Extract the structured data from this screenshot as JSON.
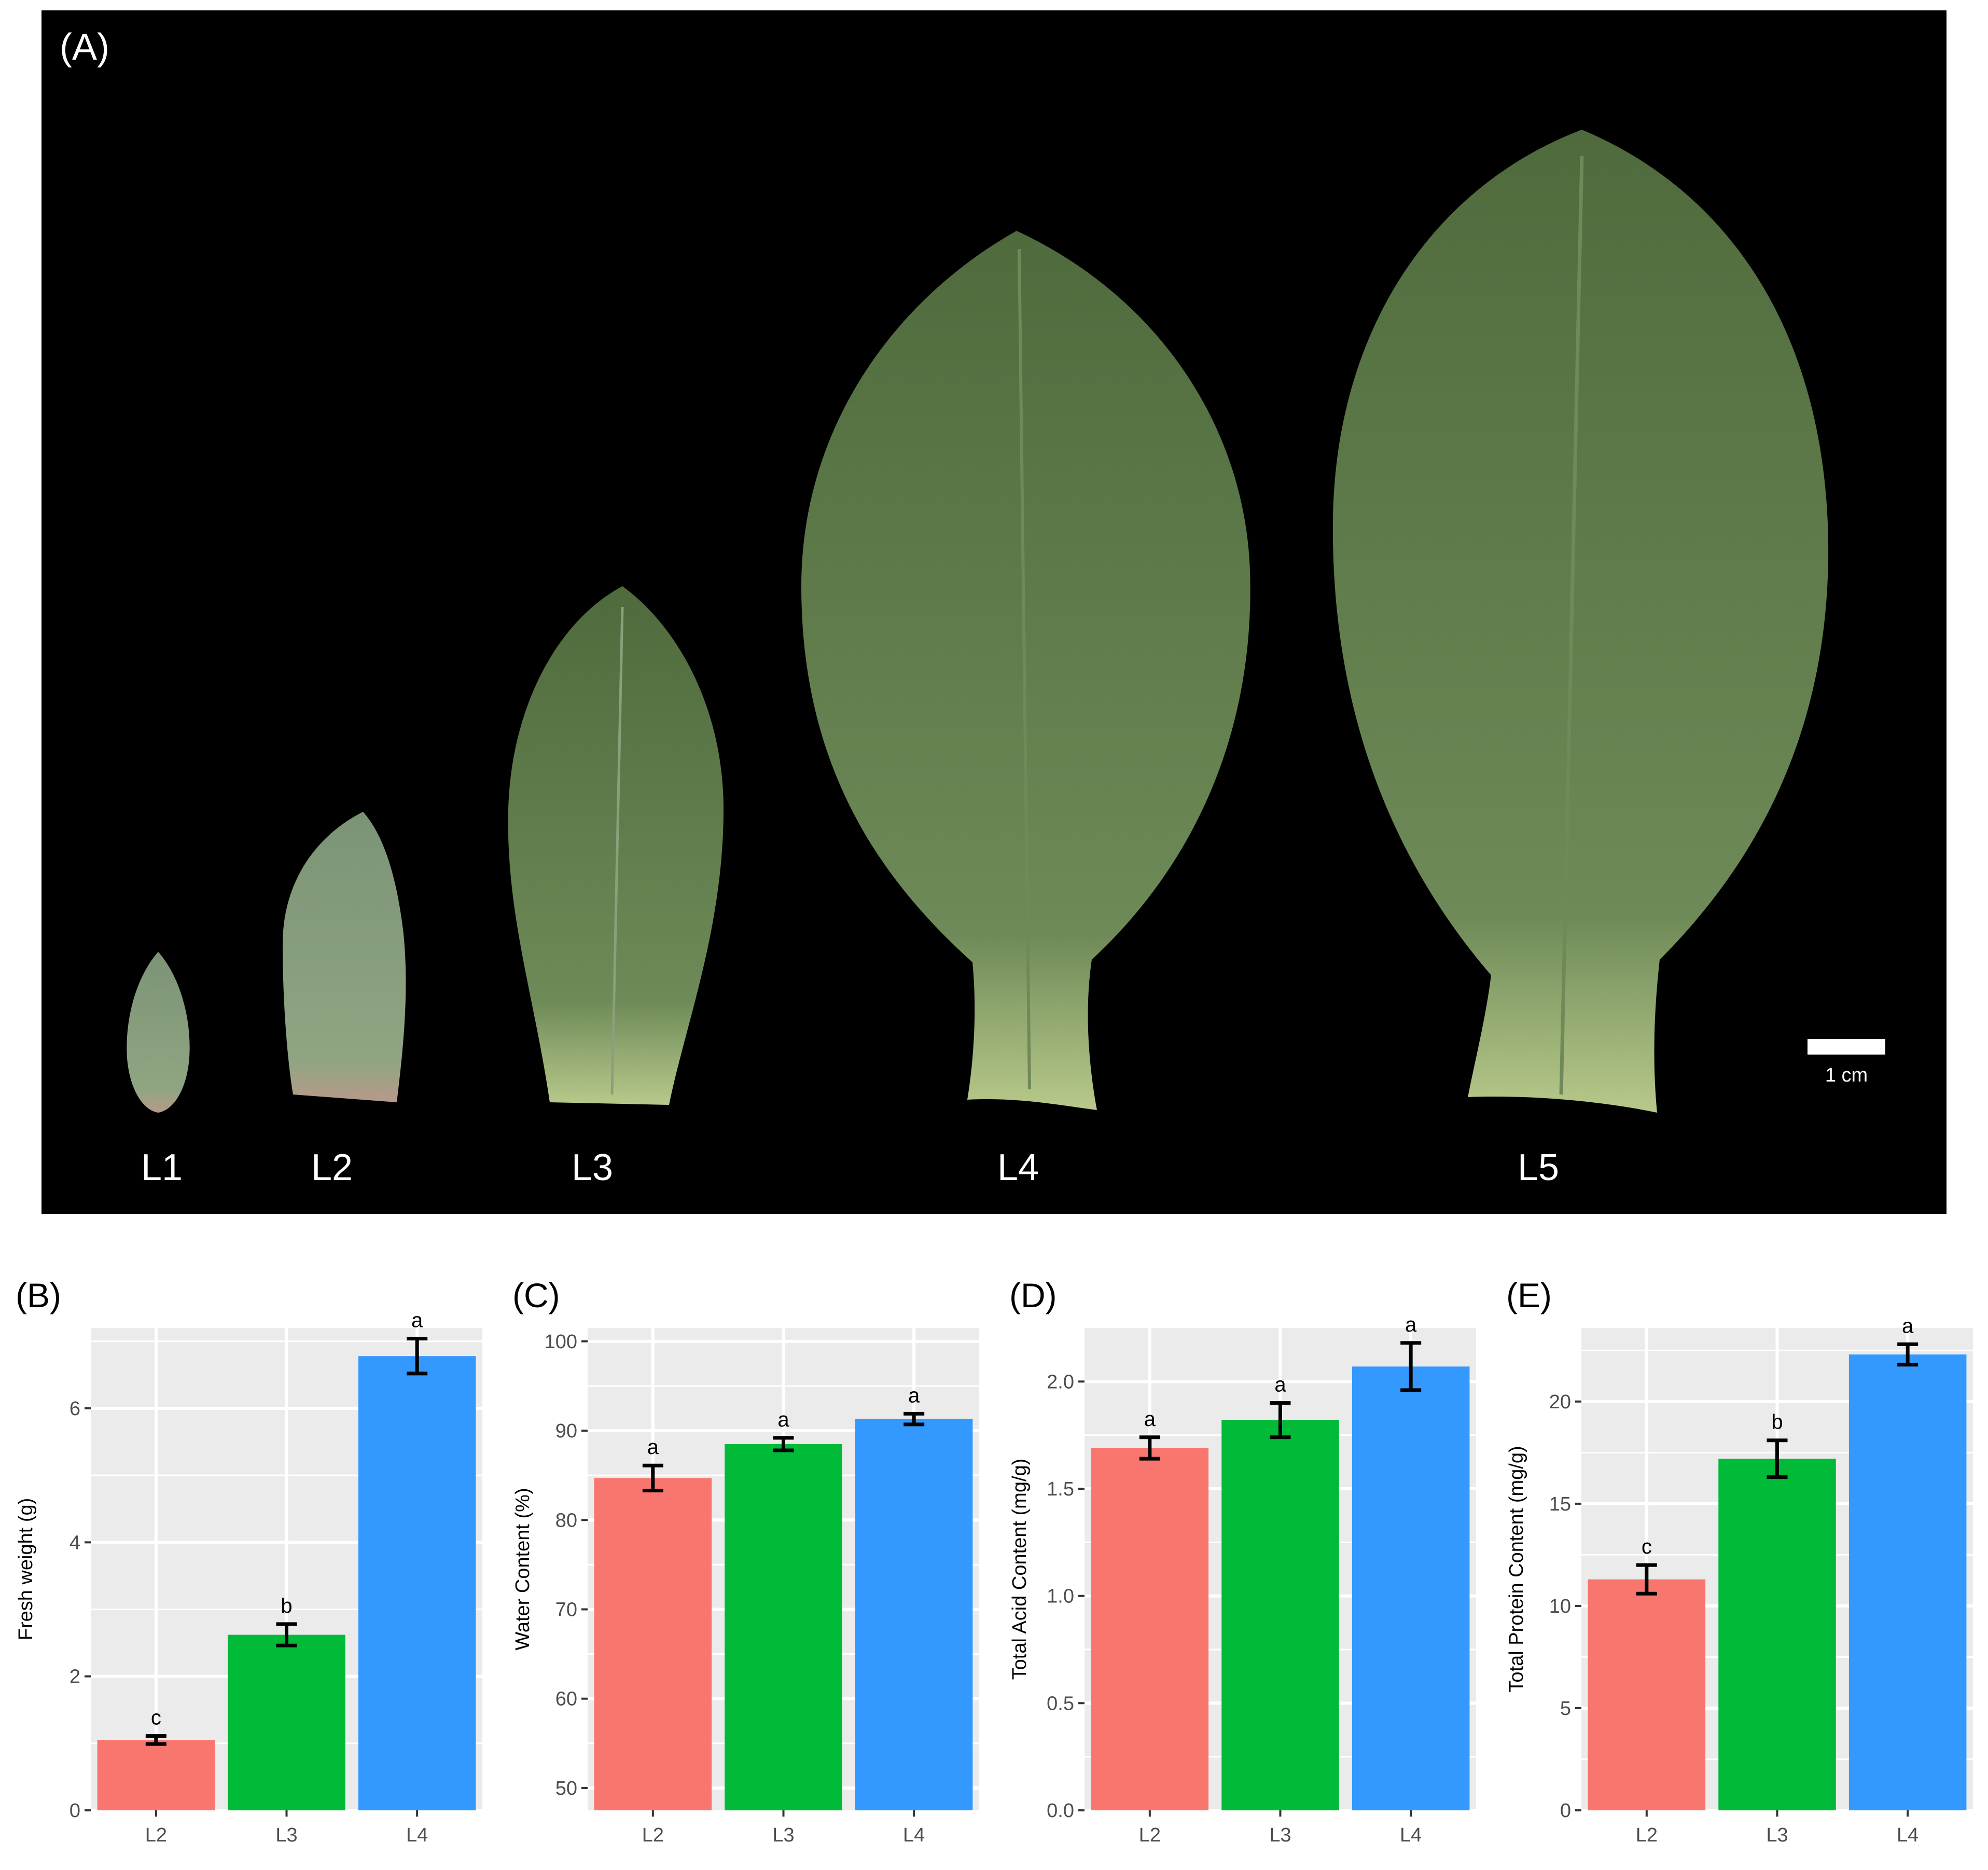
{
  "panel_a": {
    "label": "(A)",
    "scale_bar_label": "1 cm",
    "leaf_labels": [
      "L1",
      "L2",
      "L3",
      "L4",
      "L5"
    ]
  },
  "colors": {
    "background_photo": "#000000",
    "panel_bg": "#EBEBEB",
    "grid": "#FFFFFF",
    "L2": "#F8766D",
    "L3": "#00BA38",
    "L4": "#3399FF",
    "leaf_dark": "#4a5e3a",
    "leaf_light": "#7f9a72"
  },
  "chart_data": [
    {
      "panel_label": "(B)",
      "type": "bar",
      "categories": [
        "L2",
        "L3",
        "L4"
      ],
      "values": [
        1.05,
        2.62,
        6.78
      ],
      "errors": [
        0.06,
        0.16,
        0.26
      ],
      "letters": [
        "c",
        "b",
        "a"
      ],
      "ylabel": "Fresh weight (g)",
      "ylim": [
        0,
        7.2
      ],
      "yticks": [
        0,
        2,
        4,
        6
      ],
      "tick_labels": [
        "0",
        "2",
        "4",
        "6"
      ],
      "grid": true
    },
    {
      "panel_label": "(C)",
      "type": "bar",
      "categories": [
        "L2",
        "L3",
        "L4"
      ],
      "values": [
        84.7,
        88.5,
        91.3
      ],
      "errors": [
        1.4,
        0.7,
        0.6
      ],
      "letters": [
        "a",
        "a",
        "a"
      ],
      "ylabel": "Water Content (%)",
      "ylim": [
        47.5,
        101.5
      ],
      "yticks": [
        50,
        60,
        70,
        80,
        90,
        100
      ],
      "tick_labels": [
        "50",
        "60",
        "70",
        "80",
        "90",
        "100"
      ],
      "grid": true
    },
    {
      "panel_label": "(D)",
      "type": "bar",
      "categories": [
        "L2",
        "L3",
        "L4"
      ],
      "values": [
        1.69,
        1.82,
        2.07
      ],
      "errors": [
        0.05,
        0.08,
        0.11
      ],
      "letters": [
        "a",
        "a",
        "a"
      ],
      "ylabel": "Total Acid Content (mg/g)",
      "ylim": [
        0,
        2.25
      ],
      "yticks": [
        0.0,
        0.5,
        1.0,
        1.5,
        2.0
      ],
      "tick_labels": [
        "0.0",
        "0.5",
        "1.0",
        "1.5",
        "2.0"
      ],
      "grid": true
    },
    {
      "panel_label": "(E)",
      "type": "bar",
      "categories": [
        "L2",
        "L3",
        "L4"
      ],
      "values": [
        11.3,
        17.2,
        22.3
      ],
      "errors": [
        0.7,
        0.9,
        0.5
      ],
      "letters": [
        "c",
        "b",
        "a"
      ],
      "ylabel": "Total Protein Content (mg/g)",
      "ylim": [
        0,
        23.6
      ],
      "yticks": [
        0,
        5,
        10,
        15,
        20
      ],
      "tick_labels": [
        "0",
        "5",
        "10",
        "15",
        "20"
      ],
      "grid": true
    }
  ]
}
